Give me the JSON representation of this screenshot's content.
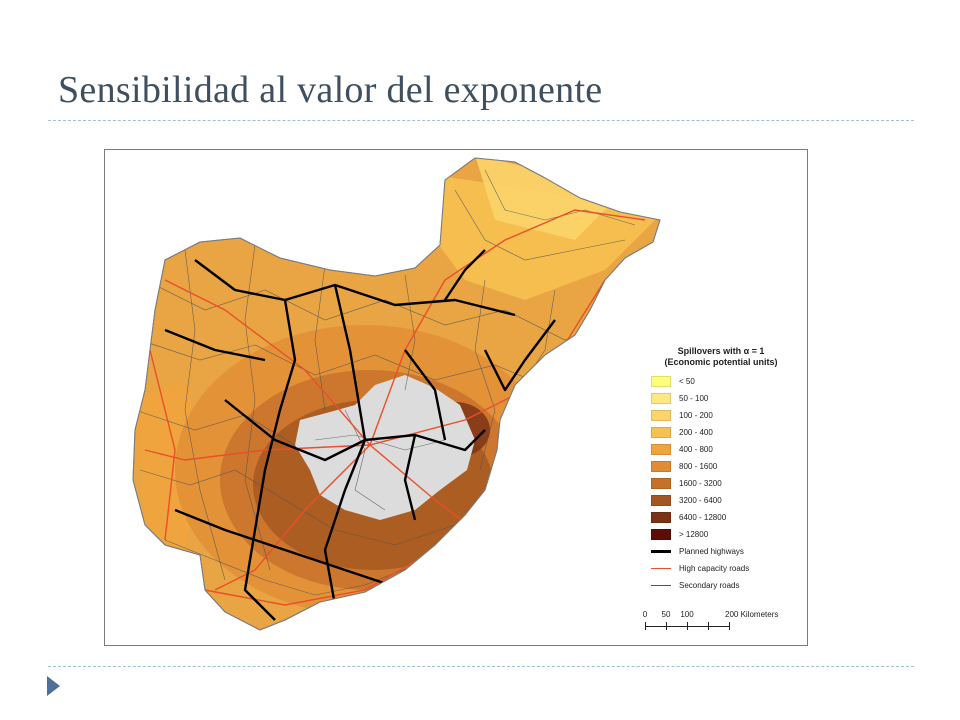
{
  "slide": {
    "title": "Sensibilidad al valor del exponente"
  },
  "map": {
    "legend": {
      "title_line1": "Spillovers with α = 1",
      "title_line2": "(Economic potential units)",
      "classes": [
        {
          "label": "< 50",
          "color": "#fefe7a"
        },
        {
          "label": "50 - 100",
          "color": "#fde882"
        },
        {
          "label": "100 - 200",
          "color": "#fbd46a"
        },
        {
          "label": "200 - 400",
          "color": "#f7c150"
        },
        {
          "label": "400 - 800",
          "color": "#f1a43c"
        },
        {
          "label": "800 - 1600",
          "color": "#e08c34"
        },
        {
          "label": "1600 - 3200",
          "color": "#c5712a"
        },
        {
          "label": "3200 - 6400",
          "color": "#a3561f"
        },
        {
          "label": "6400 - 12800",
          "color": "#7c3315"
        },
        {
          "label": "> 12800",
          "color": "#5b0d06"
        }
      ],
      "lines": [
        {
          "label": "Planned highways",
          "color": "#000000",
          "width": 3
        },
        {
          "label": "High capacity roads",
          "color": "#e8502a",
          "width": 1.5
        },
        {
          "label": "Secondary roads",
          "color": "#555555",
          "width": 1
        }
      ]
    },
    "scale_bar": {
      "ticks": [
        "0",
        "50",
        "100",
        "200 Kilometers"
      ]
    },
    "colors": {
      "focus_region": "#dcdcdc",
      "background_band": "#e9a443",
      "mid_band": "#d9872f",
      "dark_band": "#a3561f"
    }
  }
}
